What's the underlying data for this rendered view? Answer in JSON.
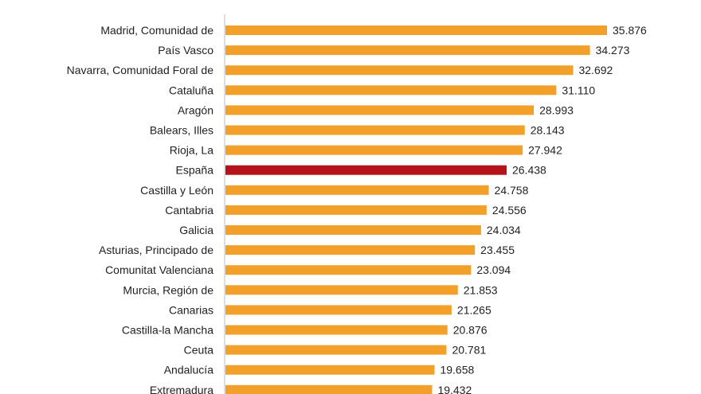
{
  "chart_data": {
    "type": "bar",
    "orientation": "horizontal",
    "title": "",
    "xlabel": "",
    "ylabel": "",
    "grid": false,
    "legend": "none",
    "xlim": [
      0,
      40000
    ],
    "categories": [
      "Madrid, Comunidad de",
      "País Vasco",
      "Navarra, Comunidad Foral de",
      "Cataluña",
      "Aragón",
      "Balears, Illes",
      "Rioja, La",
      "España",
      "Castilla y León",
      "Cantabria",
      "Galicia",
      "Asturias, Principado de",
      "Comunitat Valenciana",
      "Murcia, Región de",
      "Canarias",
      "Castilla-la Mancha",
      "Ceuta",
      "Andalucía",
      "Extremadura"
    ],
    "values": [
      35876,
      34273,
      32692,
      31110,
      28993,
      28143,
      27942,
      26438,
      24758,
      24556,
      24034,
      23455,
      23094,
      21853,
      21265,
      20876,
      20781,
      19658,
      19432
    ],
    "value_labels": [
      "35.876",
      "34.273",
      "32.692",
      "31.110",
      "28.993",
      "28.143",
      "27.942",
      "26.438",
      "24.758",
      "24.556",
      "24.034",
      "23.455",
      "23.094",
      "21.853",
      "21.265",
      "20.876",
      "20.781",
      "19.658",
      "19.432"
    ],
    "highlight_category": "España",
    "colors": {
      "bar": "#f2a02a",
      "highlight": "#b5121b",
      "axis": "#bfbfbf",
      "text": "#222222"
    }
  }
}
